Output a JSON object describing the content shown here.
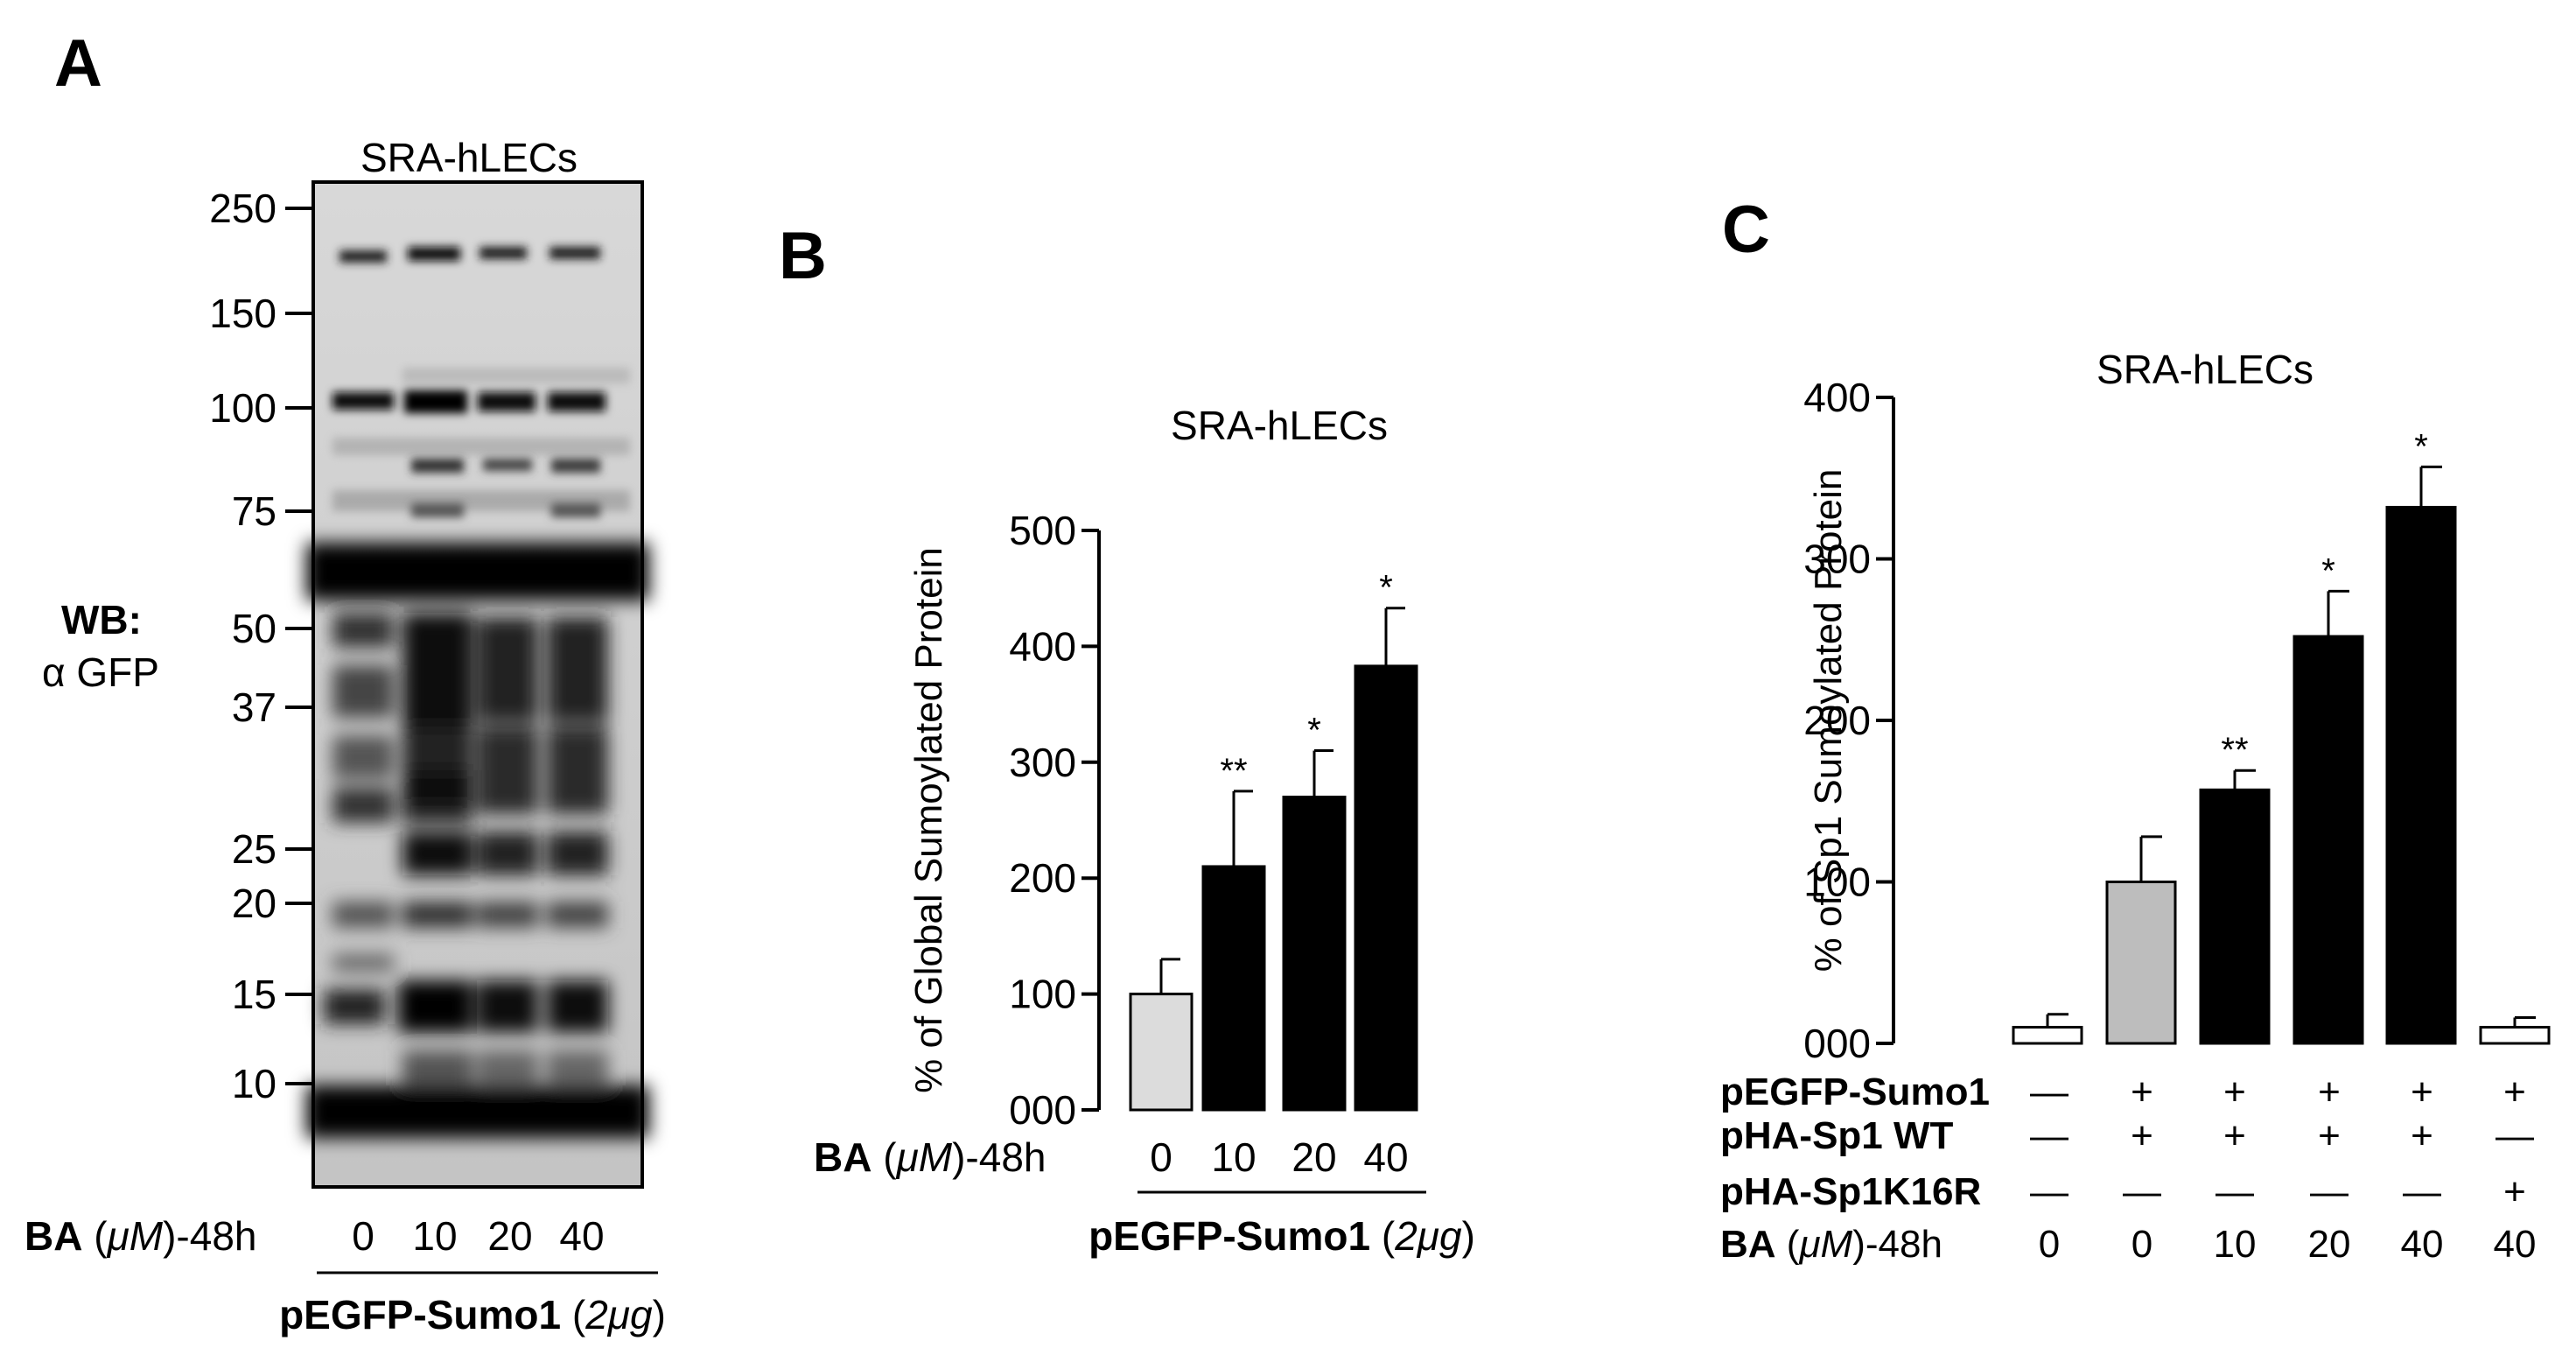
{
  "panels": {
    "a": {
      "letter": "A",
      "cell_label": "SRA-hLECs",
      "wb_label": "WB:",
      "antibody_label": "α GFP",
      "markers": [
        "250",
        "150",
        "100",
        "75",
        "50",
        "37",
        "25",
        "20",
        "15",
        "10"
      ],
      "lane_label_bold": "BA",
      "lane_label_unit": "μM",
      "lane_label_suffix": "-48h",
      "lanes": [
        "0",
        "10",
        "20",
        "40"
      ],
      "plasmid_bold": "pEGFP-Sumo1",
      "plasmid_dose": "2μg"
    },
    "b": {
      "letter": "B",
      "lane_label_bold": "BA",
      "lane_label_unit": "μM",
      "lane_label_suffix": "-48h",
      "plasmid_bold": "pEGFP-Sumo1",
      "plasmid_dose": "2μg"
    },
    "c": {
      "letter": "C",
      "row_labels": [
        "pEGFP-Sumo1",
        "pHA-Sp1 WT",
        "pHA-Sp1K16R"
      ],
      "lane_label_bold": "BA",
      "lane_label_unit": "μM",
      "lane_label_suffix": "-48h",
      "treatment_grid": [
        [
          "—",
          "+",
          "+",
          "+",
          "+",
          "+"
        ],
        [
          "—",
          "+",
          "+",
          "+",
          "+",
          "—"
        ],
        [
          "—",
          "—",
          "—",
          "—",
          "—",
          "+"
        ]
      ],
      "doses": [
        "0",
        "0",
        "10",
        "20",
        "40",
        "40"
      ]
    }
  },
  "chart_data": [
    {
      "type": "bar",
      "title": "SRA-hLECs",
      "ylabel": "% of Global Sumoylated Protein",
      "xlabel": "",
      "categories": [
        "0",
        "10",
        "20",
        "40"
      ],
      "values": [
        100,
        210,
        270,
        383
      ],
      "errors": [
        30,
        65,
        40,
        50
      ],
      "significance": [
        "",
        "**",
        "*",
        "*"
      ],
      "bar_colors": [
        "#dcdcdc",
        "#000000",
        "#000000",
        "#000000"
      ],
      "ylim": [
        0,
        500
      ],
      "yticks": [
        "000",
        "100",
        "200",
        "300",
        "400",
        "500"
      ],
      "grid": false
    },
    {
      "type": "bar",
      "title": "SRA-hLECs",
      "ylabel": "% of Sp1 Sumoylated Protein",
      "xlabel": "",
      "categories": [
        "0",
        "0",
        "10",
        "20",
        "40",
        "40"
      ],
      "values": [
        10,
        100,
        157,
        252,
        332,
        10
      ],
      "errors": [
        8,
        28,
        12,
        28,
        25,
        6
      ],
      "significance": [
        "",
        "",
        "**",
        "*",
        "*",
        ""
      ],
      "bar_colors": [
        "#ffffff",
        "#bdbdbd",
        "#000000",
        "#000000",
        "#000000",
        "#ffffff"
      ],
      "ylim": [
        0,
        400
      ],
      "yticks": [
        "000",
        "100",
        "200",
        "300",
        "400"
      ],
      "grid": false
    }
  ]
}
